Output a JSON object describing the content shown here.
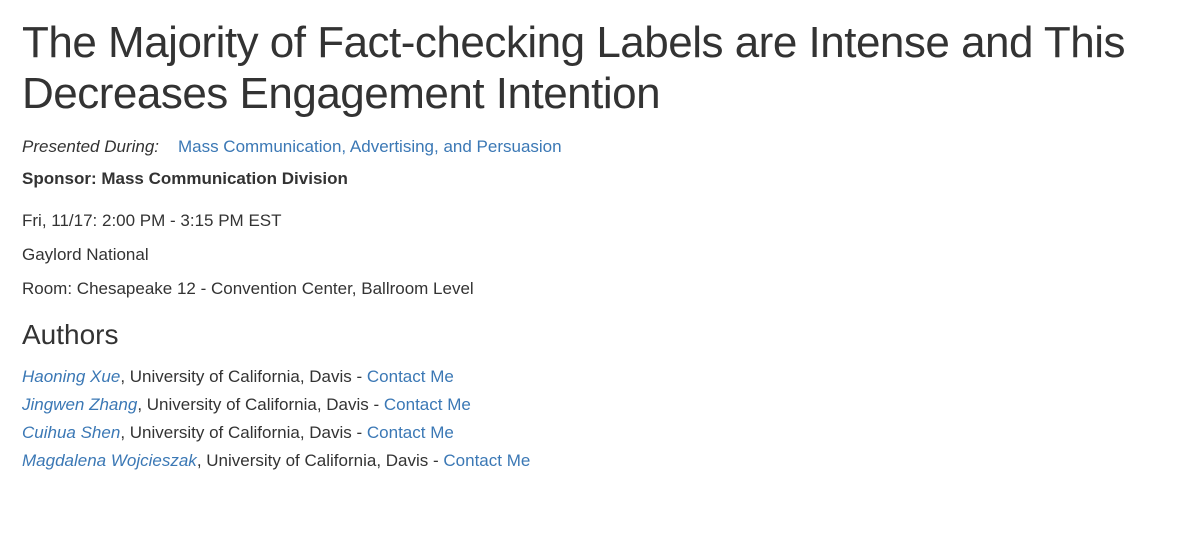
{
  "title": "The Majority of Fact-checking Labels are Intense and This Decreases Engagement Intention",
  "presented": {
    "label": "Presented During:",
    "link_text": "Mass Communication, Advertising, and Persuasion"
  },
  "sponsor": {
    "label": "Sponsor:",
    "value": "Mass Communication Division"
  },
  "datetime": "Fri, 11/17: 2:00 PM - 3:15 PM EST",
  "venue": "Gaylord National",
  "room": "Room: Chesapeake 12 - Convention Center, Ballroom Level",
  "authors_heading": "Authors",
  "authors": [
    {
      "name": "Haoning Xue",
      "affiliation": "University of California, Davis",
      "contact_label": "Contact Me"
    },
    {
      "name": "Jingwen Zhang",
      "affiliation": "University of California, Davis",
      "contact_label": "Contact Me"
    },
    {
      "name": "Cuihua Shen",
      "affiliation": "University of California, Davis",
      "contact_label": "Contact Me"
    },
    {
      "name": "Magdalena Wojcieszak",
      "affiliation": "University of California, Davis",
      "contact_label": "Contact Me"
    }
  ],
  "colors": {
    "text": "#333333",
    "link": "#3b78b5",
    "background": "#ffffff"
  },
  "typography": {
    "title_fontsize": 44,
    "body_fontsize": 17,
    "heading_fontsize": 28,
    "font_family": "Helvetica Neue"
  }
}
